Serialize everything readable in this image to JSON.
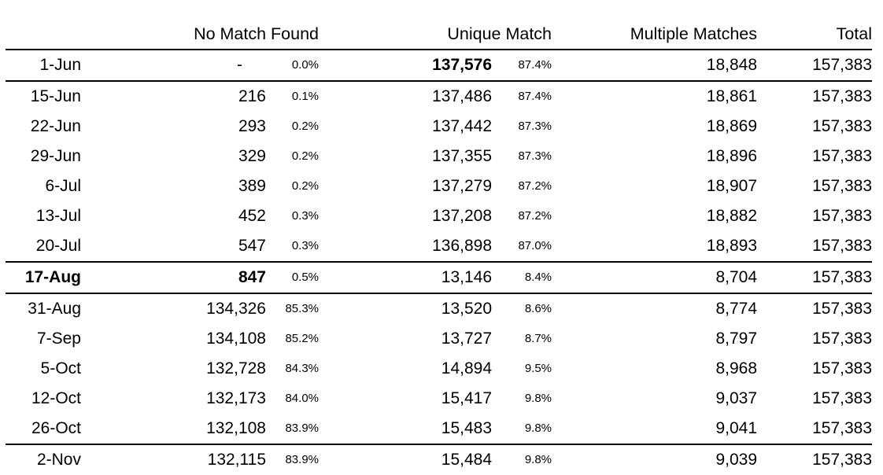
{
  "table": {
    "headers": {
      "date": "",
      "no_match_found": "No Match Found",
      "unique_match": "Unique Match",
      "multiple_matches": "Multiple Matches",
      "total": "Total"
    },
    "rows": [
      {
        "date": "1-Jun",
        "nm_count": "-",
        "nm_pct": "0.0%",
        "um_count": "137,576",
        "um_pct": "87.4%",
        "mm_count": "18,848",
        "total": "157,383",
        "bold_fields": [
          "um_count"
        ],
        "nm_is_dash": true,
        "rule_below": true
      },
      {
        "date": "15-Jun",
        "nm_count": "216",
        "nm_pct": "0.1%",
        "um_count": "137,486",
        "um_pct": "87.4%",
        "mm_count": "18,861",
        "total": "157,383",
        "bold_fields": [],
        "nm_is_dash": false,
        "rule_below": false
      },
      {
        "date": "22-Jun",
        "nm_count": "293",
        "nm_pct": "0.2%",
        "um_count": "137,442",
        "um_pct": "87.3%",
        "mm_count": "18,869",
        "total": "157,383",
        "bold_fields": [],
        "nm_is_dash": false,
        "rule_below": false
      },
      {
        "date": "29-Jun",
        "nm_count": "329",
        "nm_pct": "0.2%",
        "um_count": "137,355",
        "um_pct": "87.3%",
        "mm_count": "18,896",
        "total": "157,383",
        "bold_fields": [],
        "nm_is_dash": false,
        "rule_below": false
      },
      {
        "date": "6-Jul",
        "nm_count": "389",
        "nm_pct": "0.2%",
        "um_count": "137,279",
        "um_pct": "87.2%",
        "mm_count": "18,907",
        "total": "157,383",
        "bold_fields": [],
        "nm_is_dash": false,
        "rule_below": false
      },
      {
        "date": "13-Jul",
        "nm_count": "452",
        "nm_pct": "0.3%",
        "um_count": "137,208",
        "um_pct": "87.2%",
        "mm_count": "18,882",
        "total": "157,383",
        "bold_fields": [],
        "nm_is_dash": false,
        "rule_below": false
      },
      {
        "date": "20-Jul",
        "nm_count": "547",
        "nm_pct": "0.3%",
        "um_count": "136,898",
        "um_pct": "87.0%",
        "mm_count": "18,893",
        "total": "157,383",
        "bold_fields": [],
        "nm_is_dash": false,
        "rule_below": true
      },
      {
        "date": "17-Aug",
        "nm_count": "847",
        "nm_pct": "0.5%",
        "um_count": "13,146",
        "um_pct": "8.4%",
        "mm_count": "8,704",
        "total": "157,383",
        "bold_fields": [
          "date",
          "nm_count"
        ],
        "nm_is_dash": false,
        "rule_below": true
      },
      {
        "date": "31-Aug",
        "nm_count": "134,326",
        "nm_pct": "85.3%",
        "um_count": "13,520",
        "um_pct": "8.6%",
        "mm_count": "8,774",
        "total": "157,383",
        "bold_fields": [],
        "nm_is_dash": false,
        "rule_below": false
      },
      {
        "date": "7-Sep",
        "nm_count": "134,108",
        "nm_pct": "85.2%",
        "um_count": "13,727",
        "um_pct": "8.7%",
        "mm_count": "8,797",
        "total": "157,383",
        "bold_fields": [],
        "nm_is_dash": false,
        "rule_below": false
      },
      {
        "date": "5-Oct",
        "nm_count": "132,728",
        "nm_pct": "84.3%",
        "um_count": "14,894",
        "um_pct": "9.5%",
        "mm_count": "8,968",
        "total": "157,383",
        "bold_fields": [],
        "nm_is_dash": false,
        "rule_below": false
      },
      {
        "date": "12-Oct",
        "nm_count": "132,173",
        "nm_pct": "84.0%",
        "um_count": "15,417",
        "um_pct": "9.8%",
        "mm_count": "9,037",
        "total": "157,383",
        "bold_fields": [],
        "nm_is_dash": false,
        "rule_below": false
      },
      {
        "date": "26-Oct",
        "nm_count": "132,108",
        "nm_pct": "83.9%",
        "um_count": "15,483",
        "um_pct": "9.8%",
        "mm_count": "9,041",
        "total": "157,383",
        "bold_fields": [],
        "nm_is_dash": false,
        "rule_below": true
      },
      {
        "date": "2-Nov",
        "nm_count": "132,115",
        "nm_pct": "83.9%",
        "um_count": "15,484",
        "um_pct": "9.8%",
        "mm_count": "9,039",
        "total": "157,383",
        "bold_fields": [],
        "nm_is_dash": false,
        "rule_below": true
      }
    ],
    "colors": {
      "text": "#000000",
      "rule": "#000000",
      "background": "#ffffff"
    }
  }
}
